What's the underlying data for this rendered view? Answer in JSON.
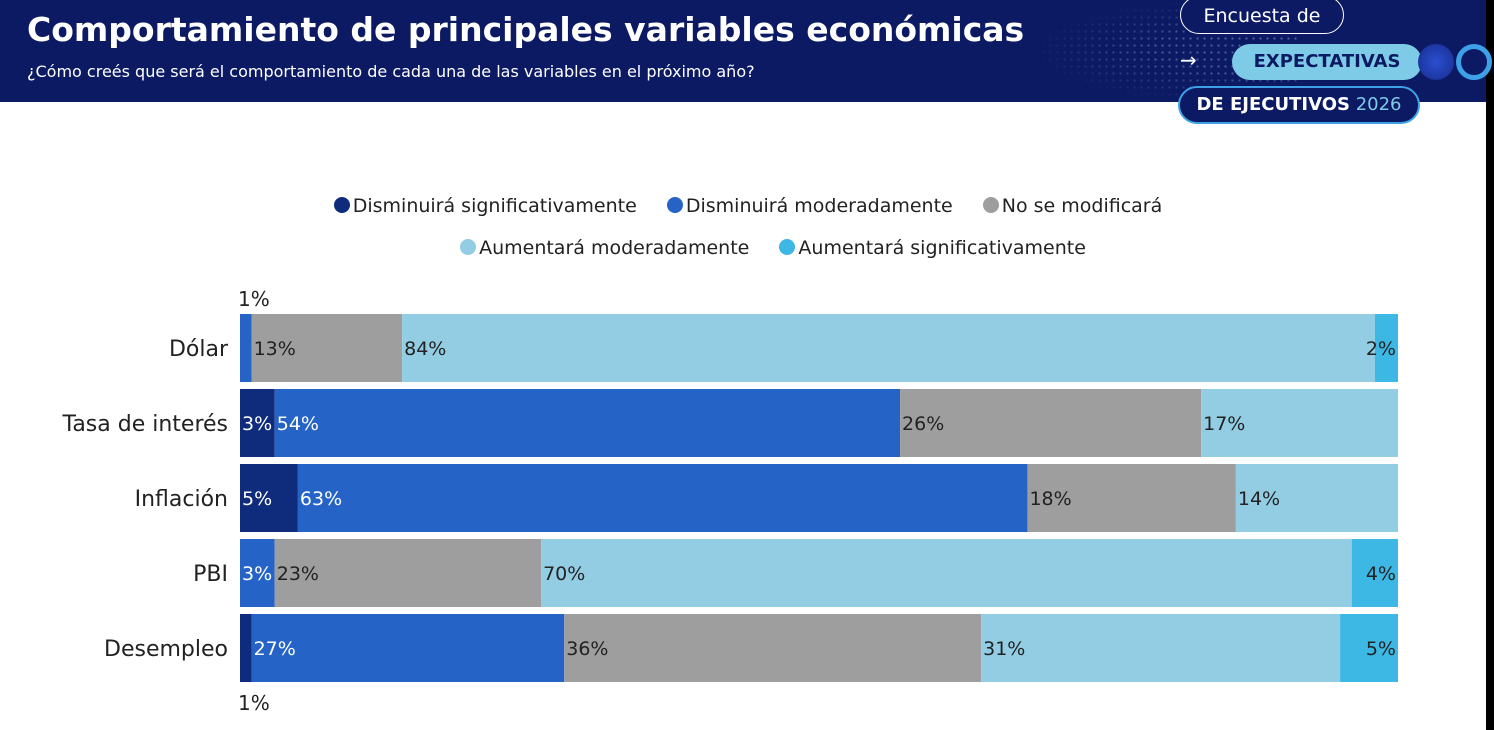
{
  "header": {
    "title": "Comportamiento de principales variables económicas",
    "subtitle": "¿Cómo creés que será el comportamiento de cada una de las variables en el próximo año?",
    "badge_line1": "Encuesta de",
    "badge_line2": "EXPECTATIVAS",
    "badge_line3_bold": "DE EJECUTIVOS",
    "badge_line3_year": "2026",
    "arrow_icon": "right-arrow-icon"
  },
  "colors": {
    "header_bg": "#0c1a63",
    "dis_sig": "#0f2c7c",
    "dis_mod": "#2563c6",
    "no_mod": "#9e9e9e",
    "aum_mod": "#93cde3",
    "aum_sig": "#3db8e4"
  },
  "chart_data": {
    "type": "bar",
    "orientation": "horizontal",
    "stacked": true,
    "percent_stacked": true,
    "categories": [
      "Dólar",
      "Tasa de interés",
      "Inflación",
      "PBI",
      "Desempleo"
    ],
    "series": [
      {
        "name": "Disminuirá significativamente",
        "color": "#0f2c7c",
        "values": [
          0,
          3,
          5,
          0,
          1
        ]
      },
      {
        "name": "Disminuirá moderadamente",
        "color": "#2563c6",
        "values": [
          1,
          54,
          63,
          3,
          27
        ]
      },
      {
        "name": "No se modificará",
        "color": "#9e9e9e",
        "values": [
          13,
          26,
          18,
          23,
          36
        ]
      },
      {
        "name": "Aumentará moderadamente",
        "color": "#93cde3",
        "values": [
          84,
          17,
          14,
          70,
          31
        ]
      },
      {
        "name": "Aumentará significativamente",
        "color": "#3db8e4",
        "values": [
          2,
          0,
          0,
          4,
          5
        ]
      }
    ],
    "legend_position": "top-center",
    "grid": false
  }
}
